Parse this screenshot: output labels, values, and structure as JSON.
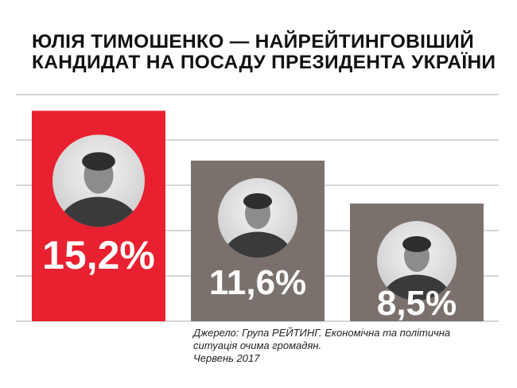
{
  "title_lines": [
    "ЮЛІЯ ТИМОШЕНКО — НАЙРЕЙТИНГОВІШИЙ",
    "КАНДИДАТ НА ПОСАДУ ПРЕЗИДЕНТА УКРАЇНИ"
  ],
  "source_lines": [
    "Джерело: Група РЕЙТИНГ. Економічна та політична",
    "ситуація очима громадян.",
    "Червень 2017"
  ],
  "colors": {
    "highlight_bar": "#e8202f",
    "other_bar": "#7a716d",
    "grid": "#c8c8c8",
    "label": "#ffffff"
  },
  "chart_data": {
    "type": "bar",
    "title": "ЮЛІЯ ТИМОШЕНКО — НАЙРЕЙТИНГОВІШИЙ КАНДИДАТ НА ПОСАДУ ПРЕЗИДЕНТА УКРАЇНИ",
    "categories": [
      "",
      "",
      ""
    ],
    "values": [
      15.2,
      11.6,
      8.5
    ],
    "value_labels": [
      "15,2%",
      "11,6%",
      "8,5%"
    ],
    "bar_colors": [
      "#e8202f",
      "#7a716d",
      "#7a716d"
    ],
    "ylim": [
      0,
      17
    ],
    "grid": true,
    "avatars": [
      "portrait-photo",
      "portrait-photo",
      "portrait-photo"
    ]
  }
}
